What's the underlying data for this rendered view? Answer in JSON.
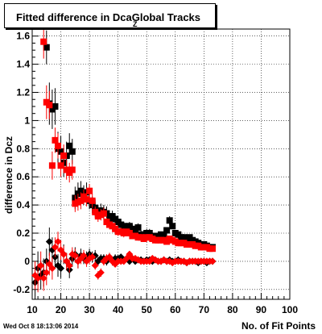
{
  "title": {
    "main": "Fitted difference in DcaGlobal Tracks",
    "subscript": "Z"
  },
  "footer_timestamp": "Wed Oct  8 18:13:06 2014",
  "colors": {
    "series_black": "#000000",
    "series_red": "#ff0000",
    "frame": "#000000",
    "grid": "#000000"
  },
  "chart_data": {
    "type": "scatter",
    "title": "Fitted difference in DcaGlobal Tracks",
    "xlabel": "No. of Fit Points",
    "ylabel": "difference in Dcz",
    "xlim": [
      10,
      100
    ],
    "ylim": [
      -0.27,
      1.65
    ],
    "x_ticks": [
      10,
      20,
      30,
      40,
      50,
      60,
      70,
      80,
      90,
      100
    ],
    "y_ticks": [
      -0.2,
      0,
      0.2,
      0.4,
      0.6,
      0.8,
      1,
      1.2,
      1.4,
      1.6
    ],
    "y_tick_labels": [
      "-0.2",
      "0",
      "0.2",
      "0.4",
      "0.6",
      "0.8",
      "1",
      "1.2",
      "1.4",
      "1.6"
    ],
    "grid": true,
    "series": [
      {
        "color": "#000000",
        "marker": "square",
        "x": [
          15,
          16,
          17,
          18,
          19,
          20,
          21,
          22,
          23,
          24,
          25,
          26,
          27,
          28,
          29,
          30,
          31,
          32,
          33,
          34,
          35,
          36,
          37,
          38,
          39,
          40,
          41,
          42,
          43,
          44,
          45,
          46,
          47,
          48,
          49,
          50,
          51,
          52,
          53,
          54,
          55,
          56,
          57,
          58,
          59,
          60,
          61,
          62,
          63,
          64,
          65,
          66,
          67,
          68,
          69,
          70,
          71,
          72,
          73
        ],
        "y": [
          1.52,
          1.12,
          1.08,
          1.1,
          0.8,
          0.78,
          0.7,
          0.75,
          0.82,
          0.78,
          0.45,
          0.48,
          0.5,
          0.47,
          0.49,
          0.43,
          0.4,
          0.38,
          0.35,
          0.36,
          0.35,
          0.34,
          0.3,
          0.32,
          0.3,
          0.28,
          0.26,
          0.25,
          0.24,
          0.25,
          0.23,
          0.22,
          0.24,
          0.19,
          0.19,
          0.2,
          0.2,
          0.18,
          0.17,
          0.18,
          0.19,
          0.18,
          0.22,
          0.29,
          0.25,
          0.2,
          0.19,
          0.17,
          0.17,
          0.16,
          0.17,
          0.15,
          0.14,
          0.13,
          0.12,
          0.12,
          0.11,
          0.1,
          0.1
        ],
        "err": [
          0.12,
          0.15,
          0.14,
          0.13,
          0.12,
          0.11,
          0.1,
          0.1,
          0.09,
          0.09,
          0.08,
          0.08,
          0.07,
          0.07,
          0.07,
          0.06,
          0.06,
          0.06,
          0.05,
          0.05,
          0.05,
          0.05,
          0.04,
          0.04,
          0.04,
          0.04,
          0.04,
          0.03,
          0.03,
          0.03,
          0.03,
          0.03,
          0.03,
          0.03,
          0.03,
          0.03,
          0.03,
          0.02,
          0.02,
          0.02,
          0.02,
          0.02,
          0.02,
          0.03,
          0.02,
          0.02,
          0.02,
          0.02,
          0.02,
          0.02,
          0.02,
          0.02,
          0.02,
          0.02,
          0.02,
          0.02,
          0.02,
          0.02,
          0.02
        ]
      },
      {
        "color": "#ff0000",
        "marker": "square",
        "x": [
          14,
          15,
          16,
          17,
          18,
          19,
          20,
          21,
          22,
          23,
          24,
          25,
          26,
          27,
          28,
          29,
          30,
          31,
          32,
          33,
          34,
          35,
          36,
          37,
          38,
          39,
          40,
          41,
          42,
          43,
          44,
          45,
          46,
          47,
          48,
          49,
          50,
          51,
          52,
          53,
          54,
          55,
          56,
          57,
          58,
          59,
          60,
          61,
          62,
          63,
          64,
          65,
          66,
          67,
          68,
          69,
          70,
          71,
          72,
          73
        ],
        "y": [
          1.56,
          1.13,
          1.11,
          0.68,
          0.86,
          0.82,
          0.68,
          0.75,
          0.65,
          0.63,
          0.65,
          0.41,
          0.42,
          0.43,
          0.46,
          0.44,
          0.5,
          0.43,
          0.35,
          0.32,
          0.33,
          0.34,
          0.28,
          0.26,
          0.25,
          0.23,
          0.21,
          0.21,
          0.2,
          0.21,
          0.2,
          0.18,
          0.18,
          0.17,
          0.17,
          0.16,
          0.17,
          0.17,
          0.16,
          0.15,
          0.15,
          0.15,
          0.15,
          0.14,
          0.16,
          0.15,
          0.14,
          0.13,
          0.13,
          0.13,
          0.12,
          0.12,
          0.12,
          0.11,
          0.11,
          0.1,
          0.1,
          0.1,
          0.09,
          0.09
        ],
        "err": [
          0.12,
          0.12,
          0.1,
          0.1,
          0.09,
          0.09,
          0.08,
          0.08,
          0.07,
          0.07,
          0.07,
          0.06,
          0.06,
          0.06,
          0.05,
          0.05,
          0.05,
          0.05,
          0.04,
          0.04,
          0.04,
          0.04,
          0.03,
          0.03,
          0.03,
          0.03,
          0.03,
          0.03,
          0.03,
          0.02,
          0.02,
          0.02,
          0.02,
          0.02,
          0.02,
          0.02,
          0.02,
          0.02,
          0.02,
          0.02,
          0.02,
          0.02,
          0.02,
          0.02,
          0.02,
          0.02,
          0.02,
          0.02,
          0.02,
          0.02,
          0.02,
          0.02,
          0.02,
          0.02,
          0.02,
          0.02,
          0.02,
          0.02,
          0.02,
          0.02
        ]
      },
      {
        "color": "#000000",
        "marker": "diamond",
        "x": [
          11,
          12,
          13,
          14,
          15,
          16,
          17,
          18,
          19,
          20,
          21,
          22,
          23,
          24,
          25,
          26,
          27,
          28,
          29,
          30,
          31,
          32,
          33,
          34,
          35,
          36,
          37,
          38,
          39,
          40,
          41,
          42,
          43,
          44,
          45,
          46,
          47,
          48,
          49,
          50,
          51,
          52,
          53,
          54,
          55,
          56,
          57,
          58,
          59,
          60,
          61,
          62,
          63,
          64,
          65,
          66,
          67,
          68,
          69,
          70,
          71,
          72,
          73
        ],
        "y": [
          -0.15,
          -0.05,
          -0.1,
          -0.08,
          0.0,
          0.14,
          0.08,
          0.03,
          -0.03,
          -0.05,
          0.05,
          0.0,
          -0.06,
          0.02,
          0.05,
          0.0,
          0.04,
          0.02,
          0.03,
          0.05,
          0.03,
          0.04,
          0.0,
          0.02,
          0.02,
          0.0,
          0.03,
          0.0,
          0.02,
          0.02,
          0.03,
          0.01,
          0.02,
          0.0,
          0.02,
          0.0,
          0.01,
          0.01,
          0.0,
          0.01,
          0.01,
          0.0,
          0.01,
          0.0,
          0.0,
          0.01,
          0.0,
          0.01,
          0.0,
          0.0,
          0.01,
          0.0,
          0.0,
          -0.01,
          0.0,
          0.0,
          0.0,
          -0.01,
          0.0,
          0.0,
          -0.01,
          0.0,
          0.0
        ],
        "err": [
          0.12,
          0.12,
          0.1,
          0.1,
          0.09,
          0.1,
          0.09,
          0.08,
          0.08,
          0.07,
          0.07,
          0.06,
          0.06,
          0.06,
          0.05,
          0.05,
          0.05,
          0.04,
          0.04,
          0.04,
          0.04,
          0.04,
          0.03,
          0.03,
          0.03,
          0.03,
          0.03,
          0.03,
          0.03,
          0.02,
          0.02,
          0.02,
          0.02,
          0.02,
          0.02,
          0.02,
          0.02,
          0.02,
          0.02,
          0.02,
          0.02,
          0.02,
          0.02,
          0.02,
          0.02,
          0.02,
          0.02,
          0.02,
          0.02,
          0.02,
          0.02,
          0.02,
          0.02,
          0.02,
          0.02,
          0.02,
          0.02,
          0.02,
          0.02,
          0.02,
          0.02,
          0.02,
          0.02
        ]
      },
      {
        "color": "#ff0000",
        "marker": "diamond",
        "x": [
          11,
          12,
          13,
          14,
          15,
          16,
          17,
          18,
          19,
          20,
          21,
          22,
          23,
          24,
          25,
          26,
          27,
          28,
          29,
          30,
          31,
          32,
          33,
          34,
          35,
          36,
          37,
          38,
          39,
          40,
          41,
          42,
          43,
          44,
          45,
          46,
          47,
          48,
          49,
          50,
          51,
          52,
          53,
          54,
          55,
          56,
          57,
          58,
          59,
          60,
          61,
          62,
          63,
          64,
          65,
          66,
          67,
          68,
          69,
          70,
          71,
          72,
          73
        ],
        "y": [
          -0.1,
          -0.12,
          -0.03,
          -0.12,
          -0.08,
          -0.02,
          -0.05,
          0.1,
          0.14,
          0.08,
          0.05,
          0.0,
          -0.03,
          0.05,
          0.04,
          0.0,
          0.02,
          0.04,
          0.0,
          0.02,
          0.03,
          -0.03,
          -0.1,
          -0.08,
          0.0,
          0.02,
          0.03,
          0.0,
          -0.02,
          0.0,
          0.0,
          0.0,
          0.02,
          0.05,
          0.02,
          0.02,
          0.01,
          0.0,
          0.0,
          0.0,
          0.0,
          0.02,
          0.01,
          0.0,
          0.0,
          0.01,
          0.0,
          0.0,
          -0.01,
          0.0,
          0.0,
          0.0,
          0.0,
          -0.01,
          0.0,
          0.0,
          0.0,
          0.0,
          0.0,
          0.0,
          0.0,
          0.0,
          0.0
        ],
        "err": [
          0.1,
          0.1,
          0.1,
          0.09,
          0.09,
          0.08,
          0.08,
          0.07,
          0.07,
          0.07,
          0.06,
          0.06,
          0.05,
          0.05,
          0.05,
          0.05,
          0.04,
          0.04,
          0.04,
          0.04,
          0.03,
          0.03,
          0.03,
          0.03,
          0.03,
          0.03,
          0.03,
          0.03,
          0.02,
          0.02,
          0.02,
          0.02,
          0.02,
          0.02,
          0.02,
          0.02,
          0.02,
          0.02,
          0.02,
          0.02,
          0.02,
          0.02,
          0.02,
          0.02,
          0.02,
          0.02,
          0.02,
          0.02,
          0.02,
          0.02,
          0.02,
          0.02,
          0.02,
          0.02,
          0.02,
          0.02,
          0.02,
          0.02,
          0.02,
          0.02,
          0.02,
          0.02,
          0.02
        ]
      }
    ]
  }
}
